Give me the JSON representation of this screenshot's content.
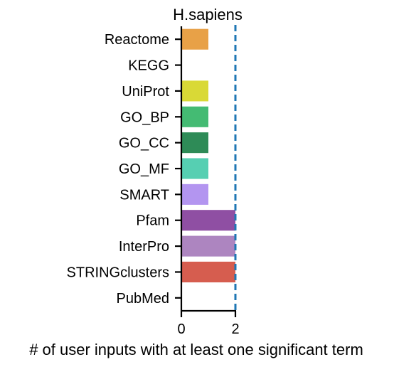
{
  "chart_data": {
    "type": "bar",
    "orientation": "horizontal",
    "title": "H.sapiens",
    "xlabel": "# of user inputs with at least one significant term",
    "ylabel": "",
    "categories": [
      "Reactome",
      "KEGG",
      "UniProt",
      "GO_BP",
      "GO_CC",
      "GO_MF",
      "SMART",
      "Pfam",
      "InterPro",
      "STRINGclusters",
      "PubMed"
    ],
    "values": [
      1,
      0,
      1,
      1,
      1,
      1,
      1,
      2,
      2,
      2,
      0
    ],
    "colors": [
      "#e8a147",
      "#ffffff",
      "#d9d936",
      "#44bb73",
      "#2e8b57",
      "#56cfb2",
      "#b395f0",
      "#8f4fa3",
      "#ad85c0",
      "#d65d4f",
      "#ffffff"
    ],
    "xlim": [
      0,
      2
    ],
    "xticks": [
      "0",
      "2"
    ],
    "reference_line": {
      "x": 2,
      "style": "dashed",
      "color": "#1f77b4"
    },
    "grid": false,
    "legend": "none"
  }
}
